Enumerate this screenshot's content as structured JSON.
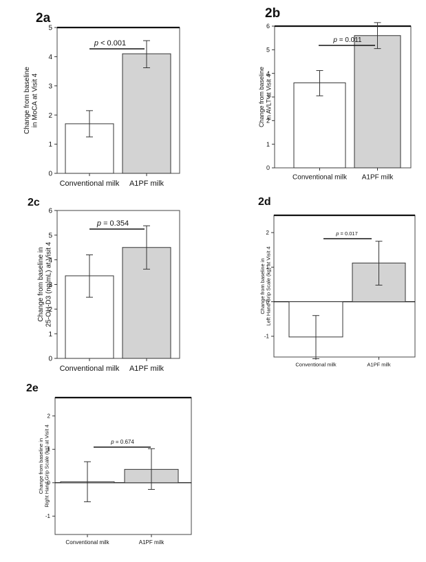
{
  "colors": {
    "conventional": "#ffffff",
    "a1pf": "#d3d3d3",
    "stroke": "#333333"
  },
  "chart_data": [
    {
      "id": "2a",
      "type": "bar",
      "panel_label": "2a",
      "categories": [
        "Conventional milk",
        "A1PF milk"
      ],
      "values": [
        1.7,
        4.1
      ],
      "error_low": [
        1.25,
        3.62
      ],
      "error_high": [
        2.15,
        4.55
      ],
      "ylim": [
        0,
        5
      ],
      "yticks": [
        0,
        1,
        2,
        3,
        4,
        5
      ],
      "ylabel_lines": [
        "Change from baseline",
        "in MoCA at Visit 4"
      ],
      "p_prefix": "p",
      "p_rest": " < 0.001",
      "grid": false
    },
    {
      "id": "2b",
      "type": "bar",
      "panel_label": "2b",
      "categories": [
        "Conventional milk",
        "A1PF milk"
      ],
      "values": [
        3.6,
        5.6
      ],
      "error_low": [
        3.05,
        5.05
      ],
      "error_high": [
        4.12,
        6.15
      ],
      "ylim": [
        0,
        6
      ],
      "yticks": [
        0,
        1,
        2,
        3,
        4,
        5,
        6
      ],
      "ylabel_lines": [
        "Change from baseline",
        "in AVLT at Visit 4"
      ],
      "p_prefix": "p",
      "p_rest": " = 0.011",
      "grid": false
    },
    {
      "id": "2c",
      "type": "bar",
      "panel_label": "2c",
      "categories": [
        "Conventional milk",
        "A1PF milk"
      ],
      "values": [
        3.35,
        4.5
      ],
      "error_low": [
        2.48,
        3.62
      ],
      "error_high": [
        4.2,
        5.38
      ],
      "ylim": [
        0,
        6
      ],
      "yticks": [
        0,
        1,
        2,
        3,
        4,
        5,
        6
      ],
      "ylabel_lines": [
        "Change from baseline in",
        "25-OH-D3 (ng/mL) at Visit 4"
      ],
      "p_prefix": "p",
      "p_rest": " = 0.354",
      "grid": false
    },
    {
      "id": "2d",
      "type": "bar",
      "panel_label": "2d",
      "categories": [
        "Conventional milk",
        "A1PF milk"
      ],
      "values": [
        -1.02,
        1.12
      ],
      "error_low": [
        -1.65,
        0.48
      ],
      "error_high": [
        -0.4,
        1.75
      ],
      "ylim": [
        -1.6,
        2.5
      ],
      "yticks": [
        -1,
        0,
        1,
        2
      ],
      "ylabel_lines": [
        "Change from baseline in",
        "Left Hand Grip Scale (kg) at Visit 4"
      ],
      "p_prefix": "p",
      "p_rest": " = 0.017",
      "grid": false
    },
    {
      "id": "2e",
      "type": "bar",
      "panel_label": "2e",
      "categories": [
        "Conventional milk",
        "A1PF milk"
      ],
      "values": [
        0.03,
        0.4
      ],
      "error_low": [
        -0.57,
        -0.2
      ],
      "error_high": [
        0.63,
        1.02
      ],
      "ylim": [
        -1.55,
        2.55
      ],
      "yticks": [
        -1,
        0,
        1,
        2
      ],
      "ylabel_lines": [
        "Change from baseline in",
        "Right Hand Grip Scale (kg) at Visit 4"
      ],
      "p_prefix": "p",
      "p_rest": " = 0.674",
      "grid": false
    }
  ]
}
